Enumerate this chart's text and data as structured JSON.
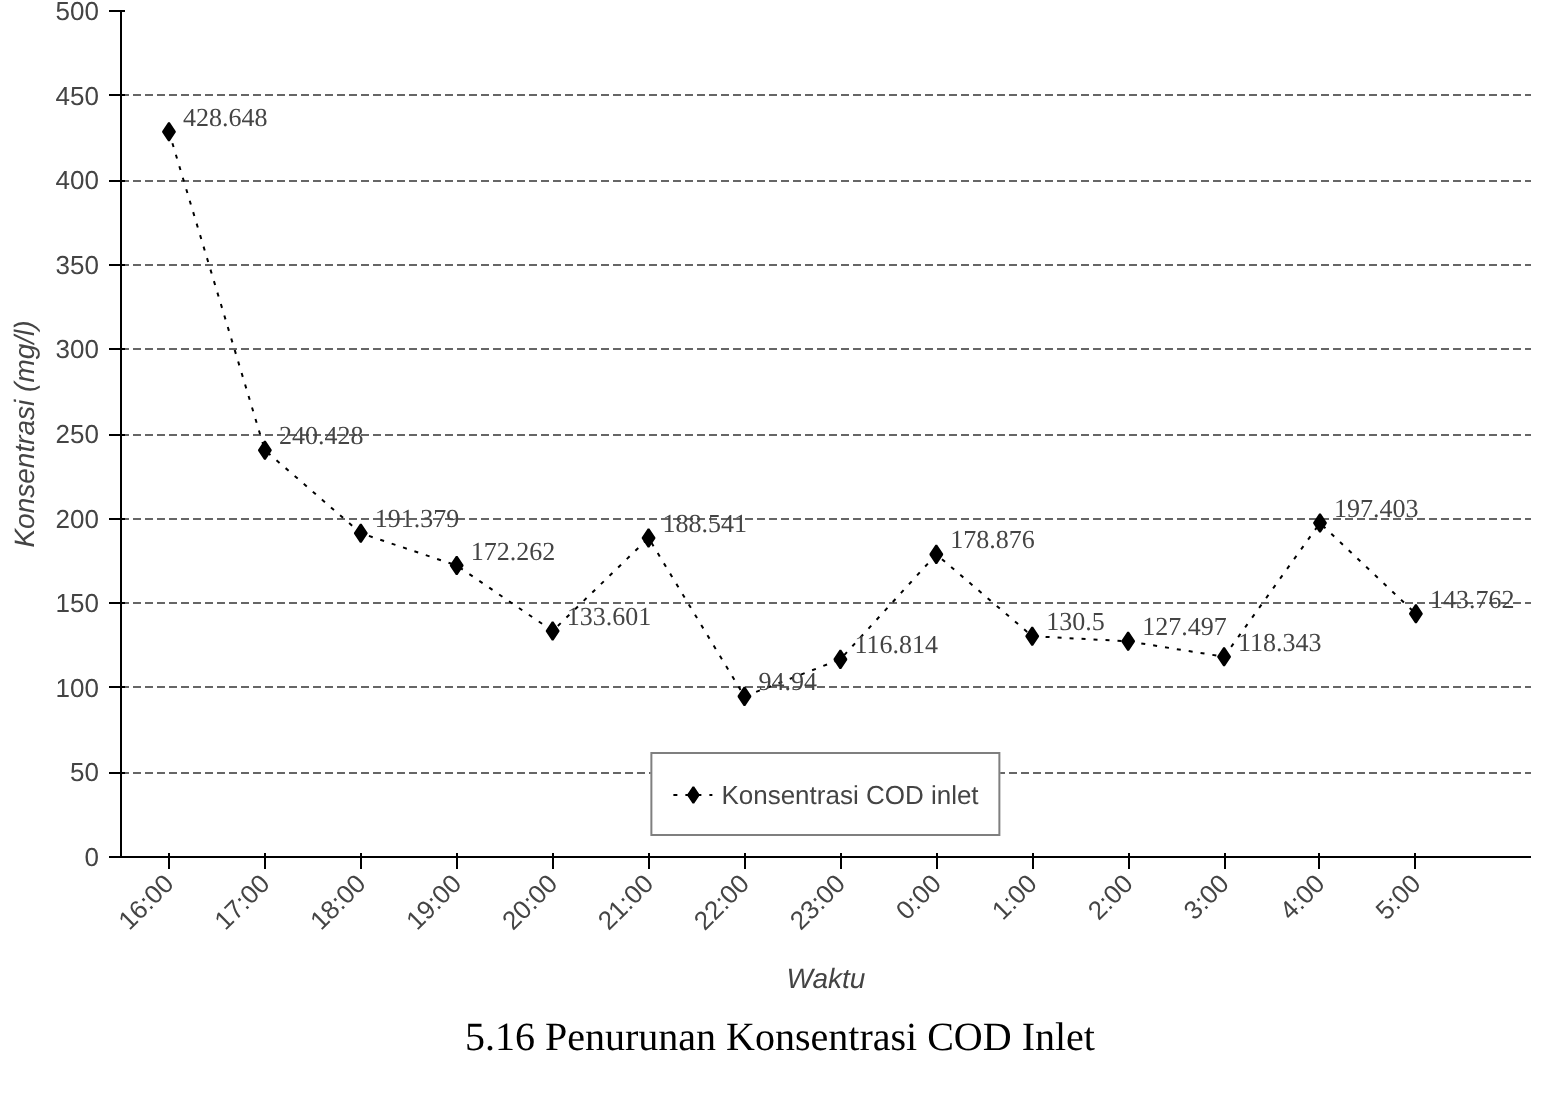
{
  "chart_data": {
    "type": "line",
    "xlabel": "Waktu",
    "ylabel": "Konsentrasi (mg/l)",
    "categories": [
      "16:00",
      "17:00",
      "18:00",
      "19:00",
      "20:00",
      "21:00",
      "22:00",
      "23:00",
      "0:00",
      "1:00",
      "2:00",
      "3:00",
      "4:00",
      "5:00"
    ],
    "series": [
      {
        "name": "Konsentrasi COD inlet",
        "color": "#000000",
        "values": [
          428.648,
          240.428,
          191.379,
          172.262,
          133.601,
          188.541,
          94.94,
          116.814,
          178.876,
          130.5,
          127.497,
          118.343,
          197.403,
          143.762
        ]
      }
    ],
    "ylim": [
      0,
      500
    ],
    "yticks": [
      0,
      50,
      100,
      150,
      200,
      250,
      300,
      350,
      400,
      450,
      500
    ],
    "grid": "y",
    "legend": "bottom",
    "marker": "diamond",
    "line_style": "dotted",
    "data_labels": true,
    "annotations": [
      "5.16 Penurunan Konsentrasi COD Inlet"
    ]
  }
}
